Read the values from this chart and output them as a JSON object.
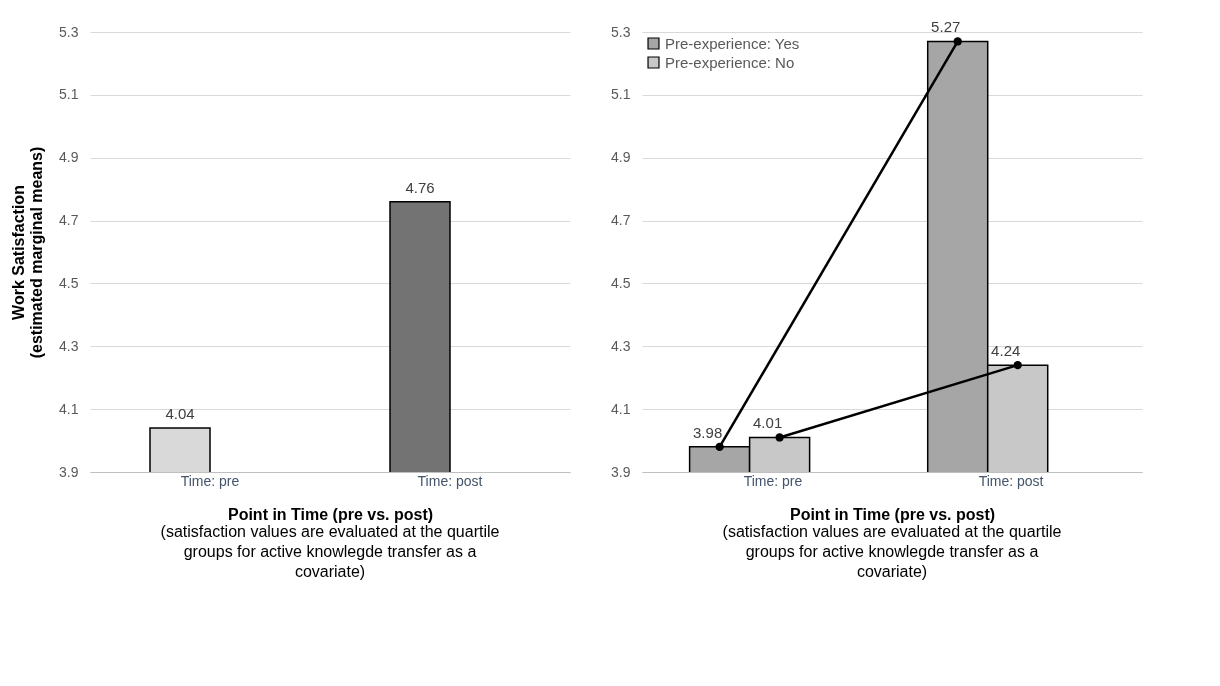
{
  "chart_data": [
    {
      "type": "bar",
      "categories": [
        "Time: pre",
        "Time: post"
      ],
      "values": [
        4.04,
        4.76
      ],
      "colors": [
        "#d9d9d9",
        "#737373"
      ],
      "ylim": [
        3.9,
        5.3
      ],
      "yticks": [
        3.9,
        4.1,
        4.3,
        4.5,
        4.7,
        4.9,
        5.1,
        5.3
      ],
      "grid": "y",
      "data_labels": true,
      "ylabel": "Work Satisfaction\n(estimated marginal means)",
      "xlabel": "Point in Time (pre vs. post)",
      "annotations": [
        "(satisfaction values are evaluated at the quartile groups for active knowlegde transfer as a covariate)"
      ]
    },
    {
      "type": "bar",
      "categories": [
        "Time: pre",
        "Time: post"
      ],
      "series": [
        {
          "name": "Pre-experience: Yes",
          "color": "#a6a6a6",
          "values": [
            3.98,
            5.27
          ]
        },
        {
          "name": "Pre-experience: No",
          "color": "#c8c8c8",
          "values": [
            4.01,
            4.24
          ]
        }
      ],
      "marker": "circle",
      "line_style": "solid",
      "legend": "top left",
      "ylim": [
        3.9,
        5.3
      ],
      "yticks": [
        3.9,
        4.1,
        4.3,
        4.5,
        4.7,
        4.9,
        5.1,
        5.3
      ],
      "grid": "y",
      "data_labels": true,
      "xlabel": "Point in Time (pre vs. post)",
      "annotations": [
        "(satisfaction values are evaluated at the quartile groups for active knowlegde transfer as a covariate)"
      ]
    }
  ]
}
